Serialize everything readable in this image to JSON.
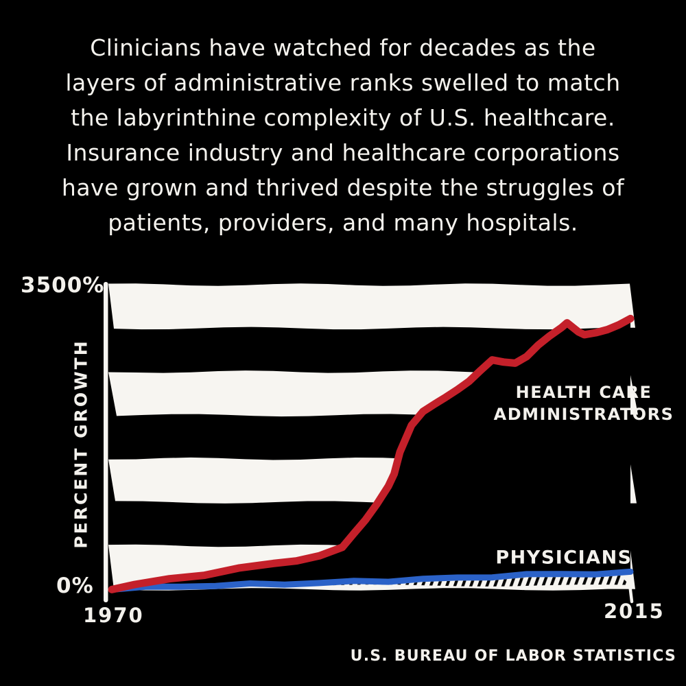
{
  "intro": {
    "lines": [
      "Clinicians have watched for decades as the",
      "layers of administrative ranks swelled to match",
      "the labyrinthine complexity of U.S. healthcare.",
      "Insurance industry and healthcare corporations",
      "have grown and thrived despite the struggles of",
      "patients, providers, and many hospitals."
    ]
  },
  "chart": {
    "y_axis": {
      "max_label": "3500%",
      "min_label": "0%",
      "title": "PERCENT GROWTH"
    },
    "x_axis": {
      "start_label": "1970",
      "end_label": "2015"
    },
    "series_labels": {
      "administrators_line1": "HEALTH CARE",
      "administrators_line2": "ADMINISTRATORS",
      "physicians": "PHYSICIANS"
    },
    "source": "U.S. BUREAU OF LABOR STATISTICS"
  },
  "chart_data": {
    "type": "line",
    "title": "",
    "xlabel": "",
    "ylabel": "PERCENT GROWTH",
    "xlim": [
      1970,
      2015
    ],
    "ylim": [
      0,
      3500
    ],
    "x_ticks": [
      "1970",
      "2015"
    ],
    "y_ticks": [
      "0%",
      "3500%"
    ],
    "grid": "striped-bands",
    "legend_position": "inline-annotations",
    "source": "U.S. BUREAU OF LABOR STATISTICS",
    "series": [
      {
        "name": "HEALTH CARE ADMINISTRATORS",
        "color": "#c4202a",
        "points": [
          [
            1970,
            0
          ],
          [
            1972,
            45
          ],
          [
            1975,
            110
          ],
          [
            1978,
            165
          ],
          [
            1981,
            235
          ],
          [
            1984,
            300
          ],
          [
            1986,
            340
          ],
          [
            1988,
            390
          ],
          [
            1990,
            480
          ],
          [
            1991,
            640
          ],
          [
            1992,
            800
          ],
          [
            1993,
            990
          ],
          [
            1994,
            1200
          ],
          [
            1994.5,
            1340
          ],
          [
            1995,
            1590
          ],
          [
            1996,
            1890
          ],
          [
            1997,
            2040
          ],
          [
            1998,
            2120
          ],
          [
            1999,
            2200
          ],
          [
            2000,
            2290
          ],
          [
            2001,
            2390
          ],
          [
            2002,
            2520
          ],
          [
            2003,
            2640
          ],
          [
            2004,
            2610
          ],
          [
            2005,
            2590
          ],
          [
            2006,
            2660
          ],
          [
            2007,
            2790
          ],
          [
            2008,
            2900
          ],
          [
            2009,
            3000
          ],
          [
            2009.5,
            3060
          ],
          [
            2010.5,
            2960
          ],
          [
            2011,
            2930
          ],
          [
            2012,
            2950
          ],
          [
            2013,
            2980
          ],
          [
            2014,
            3030
          ],
          [
            2015,
            3100
          ]
        ]
      },
      {
        "name": "PHYSICIANS",
        "color": "#2b62c8",
        "points": [
          [
            1970,
            0
          ],
          [
            1973,
            10
          ],
          [
            1976,
            25
          ],
          [
            1979,
            40
          ],
          [
            1982,
            55
          ],
          [
            1985,
            68
          ],
          [
            1988,
            80
          ],
          [
            1991,
            95
          ],
          [
            1994,
            105
          ],
          [
            1997,
            118
          ],
          [
            2000,
            128
          ],
          [
            2003,
            142
          ],
          [
            2006,
            155
          ],
          [
            2009,
            168
          ],
          [
            2012,
            175
          ],
          [
            2015,
            188
          ]
        ]
      }
    ],
    "style": {
      "background": "#000000",
      "stripe_color": "#f7f5f1",
      "stripe_bands": 7,
      "gap_fill_between_series": "#000000",
      "area_under_physicians": "black-diagonal-hatch-on-white"
    }
  }
}
